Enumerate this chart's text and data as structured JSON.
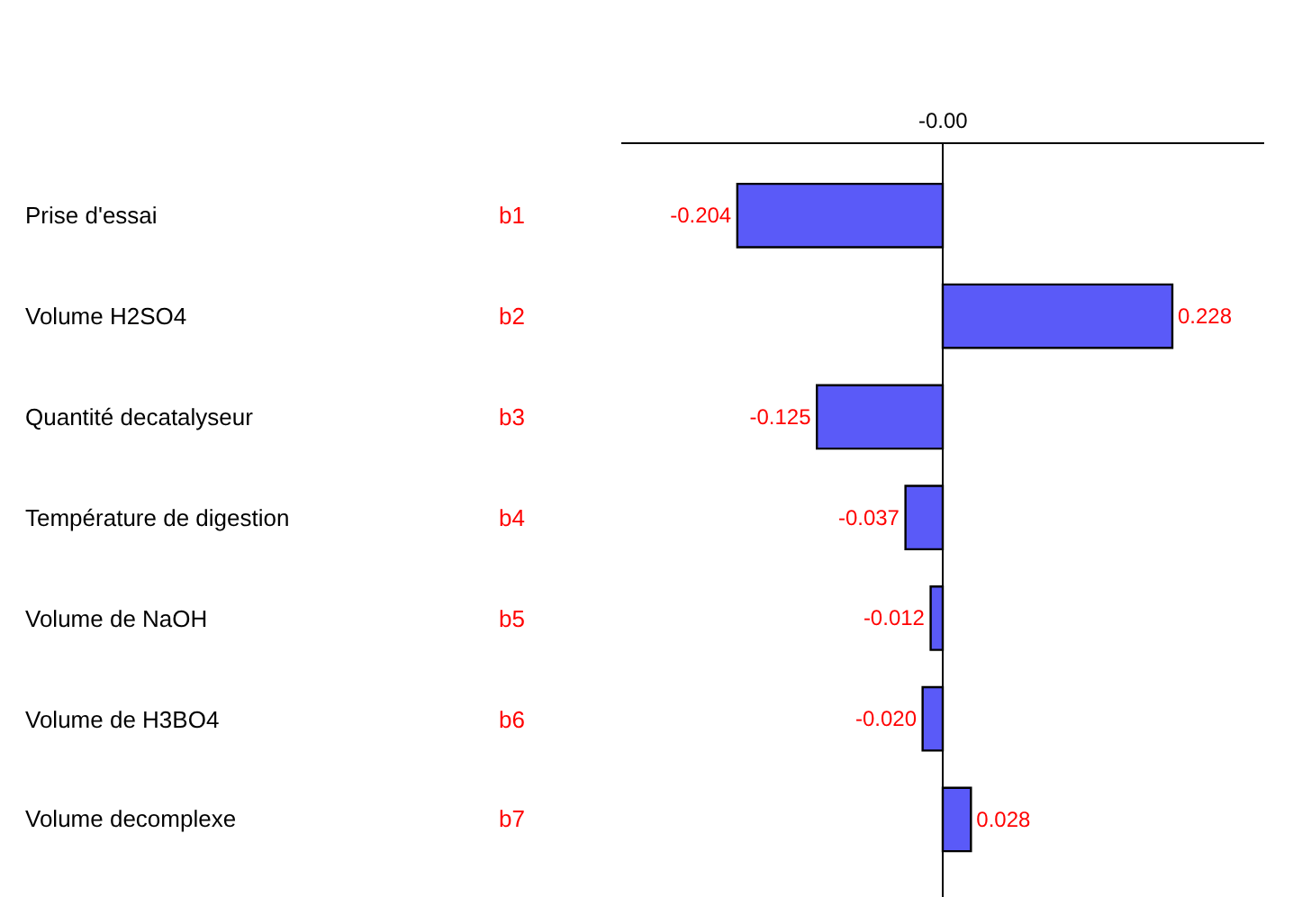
{
  "chart_data": {
    "type": "bar",
    "orientation": "horizontal",
    "categories": [
      "Prise d'essai",
      "Volume H2SO4",
      "Quantité decatalyseur",
      "Température de digestion",
      "Volume de NaOH",
      "Volume de H3BO4",
      "Volume decomplexe"
    ],
    "y2_categories": [
      "b1",
      "b2",
      "b3",
      "b4",
      "b5",
      "b6",
      "b7"
    ],
    "values": [
      -0.204,
      0.228,
      -0.125,
      -0.037,
      -0.012,
      -0.02,
      0.028
    ],
    "value_labels": [
      "-0.204",
      "0.228",
      "-0.125",
      "-0.037",
      "-0.012",
      "-0.020",
      "0.028"
    ],
    "color": "#5a5af8",
    "annotations": [
      "-0.00"
    ]
  }
}
